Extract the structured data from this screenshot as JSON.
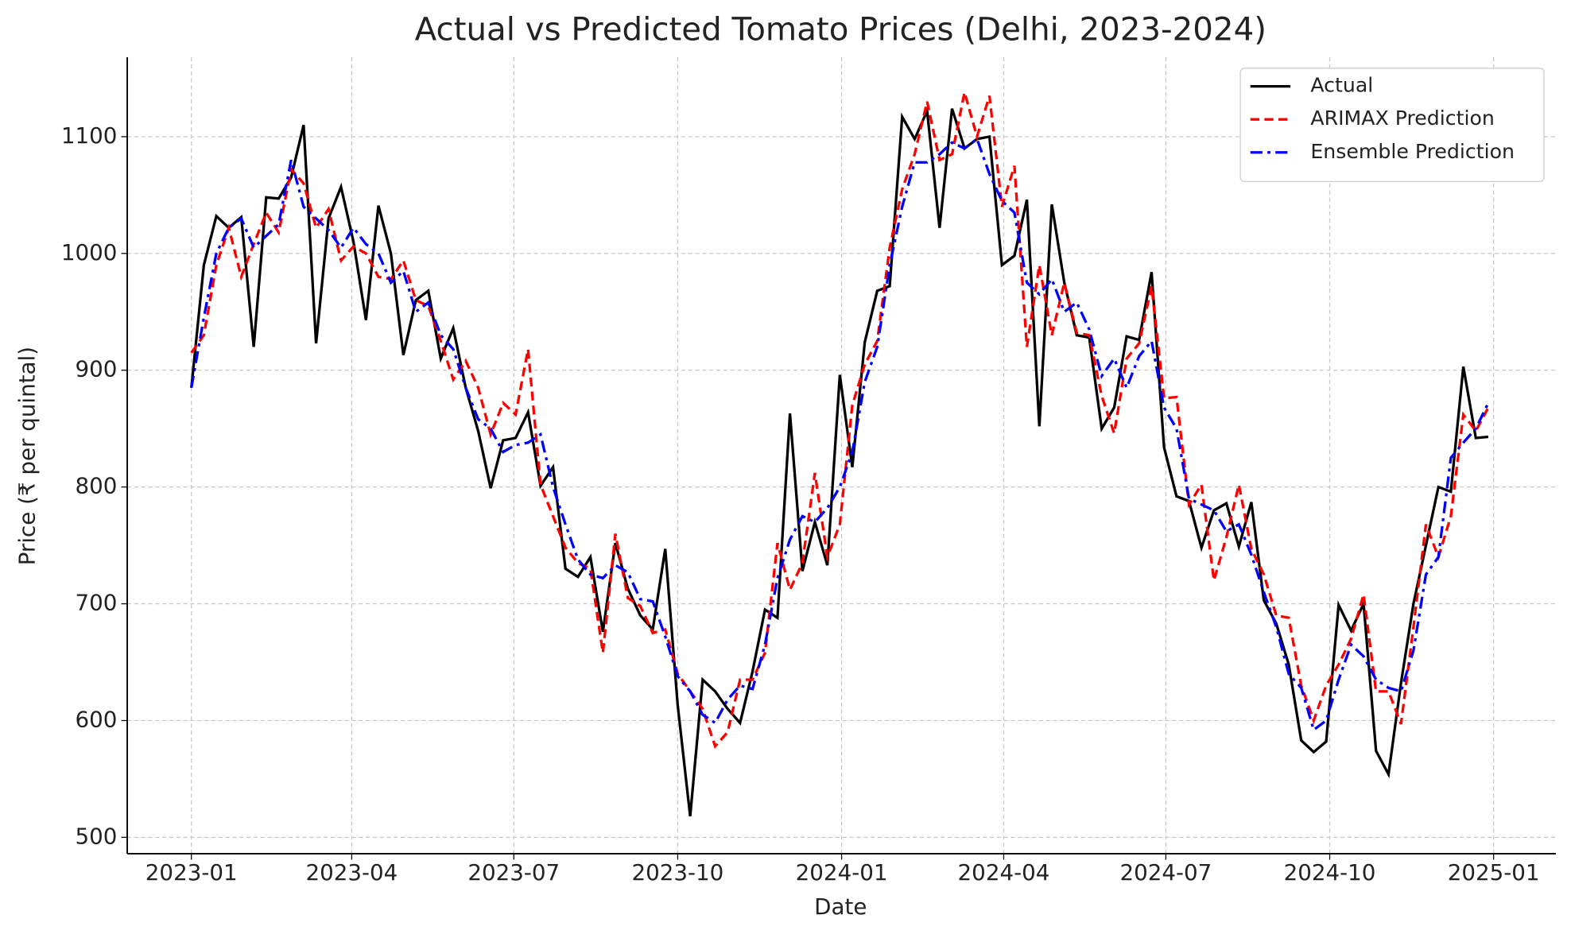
{
  "chart_data": {
    "type": "line",
    "title": "Actual vs Predicted Tomato Prices (Delhi, 2023-2024)",
    "x_label": "Date",
    "y_label": "Price (₹ per quintal)",
    "x": [
      "2023-01-01",
      "2023-01-08",
      "2023-01-15",
      "2023-01-22",
      "2023-01-29",
      "2023-02-05",
      "2023-02-12",
      "2023-02-19",
      "2023-02-26",
      "2023-03-05",
      "2023-03-12",
      "2023-03-19",
      "2023-03-26",
      "2023-04-02",
      "2023-04-09",
      "2023-04-16",
      "2023-04-23",
      "2023-04-30",
      "2023-05-07",
      "2023-05-14",
      "2023-05-21",
      "2023-05-28",
      "2023-06-04",
      "2023-06-11",
      "2023-06-18",
      "2023-06-25",
      "2023-07-02",
      "2023-07-09",
      "2023-07-16",
      "2023-07-23",
      "2023-07-30",
      "2023-08-06",
      "2023-08-13",
      "2023-08-20",
      "2023-08-27",
      "2023-09-03",
      "2023-09-10",
      "2023-09-17",
      "2023-09-24",
      "2023-10-01",
      "2023-10-08",
      "2023-10-15",
      "2023-10-22",
      "2023-10-29",
      "2023-11-05",
      "2023-11-12",
      "2023-11-19",
      "2023-11-26",
      "2023-12-03",
      "2023-12-10",
      "2023-12-17",
      "2023-12-24",
      "2023-12-31",
      "2024-01-07",
      "2024-01-14",
      "2024-01-21",
      "2024-01-28",
      "2024-02-04",
      "2024-02-11",
      "2024-02-18",
      "2024-02-25",
      "2024-03-03",
      "2024-03-10",
      "2024-03-17",
      "2024-03-24",
      "2024-03-31",
      "2024-04-07",
      "2024-04-14",
      "2024-04-21",
      "2024-04-28",
      "2024-05-05",
      "2024-05-12",
      "2024-05-19",
      "2024-05-26",
      "2024-06-02",
      "2024-06-09",
      "2024-06-16",
      "2024-06-23",
      "2024-06-30",
      "2024-07-07",
      "2024-07-14",
      "2024-07-21",
      "2024-07-28",
      "2024-08-04",
      "2024-08-11",
      "2024-08-18",
      "2024-08-25",
      "2024-09-01",
      "2024-09-08",
      "2024-09-15",
      "2024-09-22",
      "2024-09-29",
      "2024-10-06",
      "2024-10-13",
      "2024-10-20",
      "2024-10-27",
      "2024-11-03",
      "2024-11-10",
      "2024-11-17",
      "2024-11-24",
      "2024-12-01",
      "2024-12-08",
      "2024-12-15",
      "2024-12-22",
      "2024-12-29"
    ],
    "series": [
      {
        "name": "Actual",
        "color": "#000000",
        "linestyle": "solid",
        "values": [
          885,
          990,
          1032,
          1022,
          1031,
          920,
          1048,
          1047,
          1065,
          1110,
          923,
          1030,
          1057,
          1010,
          943,
          1041,
          1000,
          913,
          960,
          968,
          910,
          936,
          885,
          848,
          799,
          840,
          842,
          864,
          801,
          817,
          730,
          723,
          740,
          676,
          752,
          713,
          690,
          678,
          747,
          613,
          518,
          635,
          625,
          610,
          598,
          642,
          695,
          688,
          863,
          728,
          770,
          733,
          896,
          817,
          924,
          968,
          972,
          1117,
          1098,
          1122,
          1022,
          1124,
          1090,
          1098,
          1100,
          990,
          998,
          1046,
          852,
          1042,
          975,
          930,
          928,
          850,
          868,
          929,
          926,
          984,
          834,
          792,
          788,
          748,
          780,
          786,
          749,
          787,
          703,
          683,
          648,
          583,
          573,
          582,
          699,
          677,
          700,
          574,
          554,
          632,
          700,
          750,
          800,
          796,
          903,
          842,
          843
        ]
      },
      {
        "name": "ARIMAX Prediction",
        "color": "#ff0000",
        "linestyle": "dashed",
        "values": [
          915,
          930,
          990,
          1022,
          980,
          1008,
          1035,
          1018,
          1072,
          1060,
          1022,
          1038,
          994,
          1006,
          1000,
          980,
          978,
          994,
          960,
          955,
          925,
          892,
          908,
          885,
          845,
          872,
          862,
          918,
          802,
          775,
          748,
          735,
          730,
          658,
          760,
          705,
          698,
          675,
          678,
          640,
          625,
          610,
          578,
          590,
          635,
          635,
          658,
          752,
          712,
          735,
          812,
          740,
          768,
          870,
          905,
          925,
          1005,
          1055,
          1085,
          1130,
          1080,
          1085,
          1138,
          1100,
          1135,
          1040,
          1075,
          920,
          990,
          930,
          975,
          932,
          930,
          878,
          846,
          910,
          923,
          972,
          876,
          877,
          785,
          802,
          720,
          757,
          802,
          747,
          725,
          690,
          688,
          630,
          600,
          630,
          648,
          670,
          708,
          625,
          625,
          597,
          680,
          768,
          740,
          775,
          862,
          848,
          868
        ]
      },
      {
        "name": "Ensemble Prediction",
        "color": "#0000ff",
        "linestyle": "dashdot",
        "values": [
          885,
          945,
          1000,
          1022,
          1030,
          1005,
          1015,
          1025,
          1080,
          1040,
          1030,
          1020,
          1005,
          1022,
          1008,
          1000,
          975,
          985,
          950,
          958,
          930,
          918,
          885,
          858,
          850,
          830,
          836,
          838,
          845,
          800,
          768,
          738,
          725,
          722,
          733,
          727,
          704,
          702,
          672,
          638,
          625,
          605,
          598,
          618,
          630,
          627,
          665,
          722,
          755,
          775,
          770,
          782,
          800,
          830,
          890,
          920,
          990,
          1040,
          1078,
          1078,
          1085,
          1095,
          1090,
          1098,
          1068,
          1045,
          1035,
          975,
          965,
          978,
          950,
          958,
          935,
          895,
          910,
          885,
          912,
          925,
          868,
          850,
          790,
          785,
          780,
          762,
          768,
          742,
          710,
          680,
          640,
          628,
          592,
          600,
          635,
          665,
          655,
          635,
          628,
          625,
          660,
          725,
          740,
          825,
          838,
          850,
          872
        ]
      }
    ],
    "xlim": [
      "2022-11-26",
      "2025-02-05"
    ],
    "xticks": [
      {
        "value": "2023-01-01",
        "label": "2023-01"
      },
      {
        "value": "2023-04-01",
        "label": "2023-04"
      },
      {
        "value": "2023-07-01",
        "label": "2023-07"
      },
      {
        "value": "2023-10-01",
        "label": "2023-10"
      },
      {
        "value": "2024-01-01",
        "label": "2024-01"
      },
      {
        "value": "2024-04-01",
        "label": "2024-04"
      },
      {
        "value": "2024-07-01",
        "label": "2024-07"
      },
      {
        "value": "2024-10-01",
        "label": "2024-10"
      },
      {
        "value": "2025-01-01",
        "label": "2025-01"
      }
    ],
    "ylim": [
      486,
      1168
    ],
    "yticks": [
      500,
      600,
      700,
      800,
      900,
      1000,
      1100
    ],
    "grid": true,
    "legend": "upper right"
  }
}
